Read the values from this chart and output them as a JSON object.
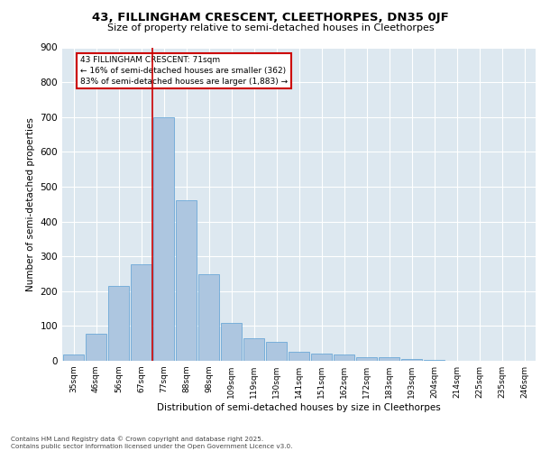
{
  "title1": "43, FILLINGHAM CRESCENT, CLEETHORPES, DN35 0JF",
  "title2": "Size of property relative to semi-detached houses in Cleethorpes",
  "xlabel": "Distribution of semi-detached houses by size in Cleethorpes",
  "ylabel": "Number of semi-detached properties",
  "bar_labels": [
    "35sqm",
    "46sqm",
    "56sqm",
    "67sqm",
    "77sqm",
    "88sqm",
    "98sqm",
    "109sqm",
    "119sqm",
    "130sqm",
    "141sqm",
    "151sqm",
    "162sqm",
    "172sqm",
    "183sqm",
    "193sqm",
    "204sqm",
    "214sqm",
    "225sqm",
    "235sqm",
    "246sqm"
  ],
  "bar_values": [
    17,
    77,
    215,
    278,
    700,
    460,
    248,
    110,
    65,
    55,
    25,
    20,
    18,
    10,
    10,
    5,
    3,
    1,
    1,
    0,
    1
  ],
  "bar_color": "#adc6e0",
  "bar_edge_color": "#5a9fd4",
  "background_color": "#dde8f0",
  "grid_color": "#ffffff",
  "property_label": "43 FILLINGHAM CRESCENT: 71sqm",
  "smaller_text": "← 16% of semi-detached houses are smaller (362)",
  "larger_text": "83% of semi-detached houses are larger (1,883) →",
  "annotation_box_color": "#cc0000",
  "ylim": [
    0,
    900
  ],
  "yticks": [
    0,
    100,
    200,
    300,
    400,
    500,
    600,
    700,
    800,
    900
  ],
  "footer1": "Contains HM Land Registry data © Crown copyright and database right 2025.",
  "footer2": "Contains public sector information licensed under the Open Government Licence v3.0."
}
